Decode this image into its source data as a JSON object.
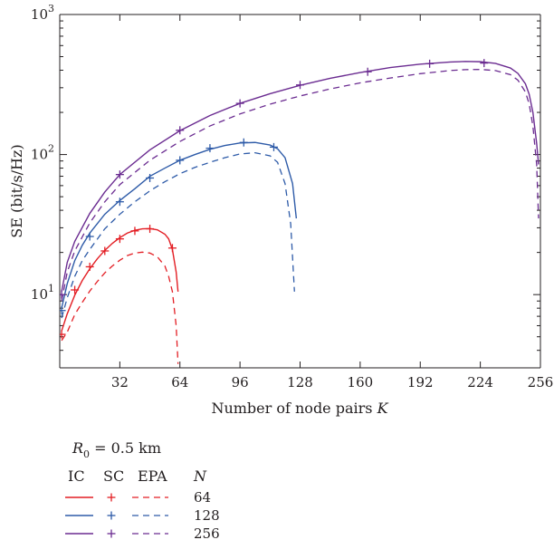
{
  "chart_data": {
    "type": "line",
    "xlabel": "Number of node pairs",
    "xlabel_var": "K",
    "ylabel": "SE (bit/s/Hz)",
    "y_scale": "log",
    "xlim": [
      0,
      256
    ],
    "ylim": [
      3,
      1000
    ],
    "x_ticks": [
      32,
      64,
      96,
      128,
      160,
      192,
      224,
      256
    ],
    "y_ticks": [
      {
        "value": 10,
        "base": "10",
        "exp": "1"
      },
      {
        "value": 100,
        "base": "10",
        "exp": "2"
      },
      {
        "value": 1000,
        "base": "10",
        "exp": "3"
      }
    ],
    "grid": false,
    "legend_placement": "below",
    "annotation": {
      "symbol": "R",
      "subscript": "0",
      "text": " = 0.5 km"
    },
    "legend_headers": [
      "IC",
      "SC",
      "EPA",
      "N"
    ],
    "groups": [
      {
        "N": "64",
        "color": "#e31e24",
        "ic": {
          "x": [
            1,
            4,
            8,
            12,
            16,
            20,
            24,
            28,
            32,
            36,
            40,
            44,
            48,
            52,
            56,
            58,
            60,
            62,
            63
          ],
          "y": [
            5.5,
            7.3,
            9.9,
            12.6,
            15.3,
            18.0,
            20.7,
            23.2,
            25.5,
            27.5,
            28.8,
            29.5,
            29.6,
            29.0,
            27.0,
            25.0,
            21.0,
            14.5,
            10.5
          ]
        },
        "sc": {
          "x": [
            1,
            8,
            16,
            24,
            32,
            40,
            48,
            60
          ],
          "y": [
            5.2,
            10.8,
            15.8,
            20.5,
            25.0,
            28.5,
            29.5,
            21.5
          ]
        },
        "epa": {
          "x": [
            1,
            4,
            8,
            12,
            16,
            20,
            24,
            28,
            32,
            36,
            40,
            44,
            48,
            52,
            56,
            58,
            60,
            62,
            63
          ],
          "y": [
            4.7,
            5.4,
            7.2,
            8.8,
            10.6,
            12.4,
            14.3,
            16.0,
            17.6,
            19.0,
            19.8,
            20.1,
            19.8,
            18.6,
            16.0,
            13.5,
            10.5,
            6.0,
            3.2
          ]
        }
      },
      {
        "N": "128",
        "color": "#2e5ba8",
        "ic": {
          "x": [
            1,
            4,
            8,
            12,
            16,
            24,
            32,
            40,
            48,
            56,
            64,
            72,
            80,
            88,
            96,
            104,
            112,
            116,
            120,
            124,
            126
          ],
          "y": [
            8.0,
            12.0,
            17.5,
            22.5,
            27.5,
            37.5,
            47.0,
            57.0,
            70.0,
            80.0,
            91.0,
            100.0,
            109.0,
            116.0,
            121.0,
            122.0,
            117.0,
            110.0,
            95.0,
            62.0,
            35.0
          ]
        },
        "sc": {
          "x": [
            1,
            16,
            32,
            48,
            64,
            80,
            98,
            114
          ],
          "y": [
            7.7,
            26.0,
            46.0,
            68.0,
            91.0,
            111.0,
            122.0,
            113.0
          ]
        },
        "epa": {
          "x": [
            1,
            4,
            8,
            12,
            16,
            24,
            32,
            40,
            48,
            56,
            64,
            72,
            80,
            88,
            96,
            104,
            112,
            116,
            120,
            123,
            125
          ],
          "y": [
            6.8,
            9.5,
            13.5,
            17.5,
            21.0,
            29.5,
            37.5,
            46.0,
            55.0,
            64.0,
            73.0,
            81.0,
            88.0,
            95.0,
            101.0,
            103.0,
            98.0,
            88.0,
            62.0,
            32.0,
            10.5
          ]
        }
      },
      {
        "N": "256",
        "color": "#6b2c91",
        "ic": {
          "x": [
            1,
            4,
            8,
            16,
            24,
            32,
            48,
            64,
            80,
            96,
            112,
            128,
            144,
            160,
            176,
            192,
            208,
            216,
            224,
            232,
            240,
            244,
            248,
            250,
            252,
            254,
            255
          ],
          "y": [
            10.5,
            17.0,
            24.0,
            38.0,
            54.0,
            72.0,
            108.0,
            148.0,
            190.0,
            232.0,
            272.0,
            312.0,
            350.0,
            385.0,
            418.0,
            442.0,
            458.0,
            462.0,
            460.0,
            448.0,
            415.0,
            380.0,
            320.0,
            270.0,
            200.0,
            120.0,
            85.0
          ]
        },
        "sc": {
          "x": [
            1,
            32,
            64,
            96,
            128,
            164,
            197,
            226
          ],
          "y": [
            10.0,
            72.0,
            149.0,
            232.0,
            314.0,
            390.0,
            445.0,
            450.0
          ]
        },
        "epa": {
          "x": [
            1,
            4,
            8,
            16,
            24,
            32,
            48,
            64,
            80,
            96,
            112,
            128,
            144,
            160,
            176,
            192,
            208,
            216,
            224,
            232,
            240,
            244,
            248,
            250,
            252,
            254,
            255
          ],
          "y": [
            9.0,
            14.5,
            20.5,
            32.5,
            46.0,
            61.0,
            91.0,
            124.0,
            160.0,
            195.0,
            229.0,
            262.0,
            294.0,
            325.0,
            352.0,
            378.0,
            398.0,
            404.0,
            405.0,
            398.0,
            372.0,
            340.0,
            280.0,
            230.0,
            160.0,
            85.0,
            35.0
          ]
        }
      }
    ]
  }
}
